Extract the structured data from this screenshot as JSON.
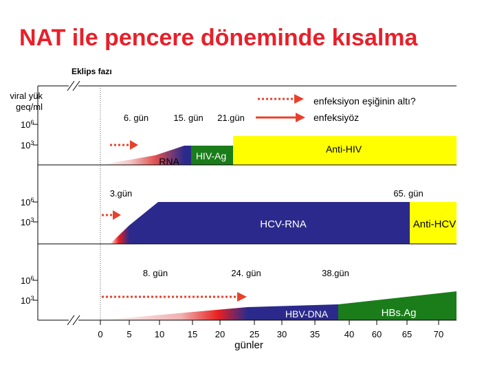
{
  "title": "NAT ile pencere döneminde kısalma",
  "eclipse_label": "Eklips fazı",
  "y_axis_label_line1": "viral yük",
  "y_axis_label_line2": "geq/ml",
  "legend": {
    "line1": "enfeksiyon eşiğinin altı?",
    "line2": "enfeksiyöz"
  },
  "panels": {
    "hiv": {
      "tick_high": "10",
      "tick_high_exp": "6",
      "tick_low": "10",
      "tick_low_exp": "3",
      "day_a": "6. gün",
      "day_b": "15. gün",
      "day_c": "21.gün",
      "label_rna": "RNA",
      "label_ag": "HIV-Ag",
      "label_ab": "Anti-HIV"
    },
    "hcv": {
      "tick_high": "10",
      "tick_high_exp": "6",
      "tick_low": "10",
      "tick_low_exp": "3",
      "day_a": "3.gün",
      "day_b": "65. gün",
      "label_rna": "HCV-RNA",
      "label_ab": "Anti-HCV"
    },
    "hbv": {
      "tick_high": "10",
      "tick_high_exp": "6",
      "tick_low": "10",
      "tick_low_exp": "3",
      "day_a": "8. gün",
      "day_b": "24. gün",
      "day_c": "38.gün",
      "label_dna": "HBV-DNA",
      "label_ag": "HBs.Ag"
    }
  },
  "x_axis": {
    "ticks": [
      "0",
      "5",
      "10",
      "15",
      "20",
      "25",
      "30",
      "35",
      "40",
      "60",
      "65",
      "70"
    ],
    "label": "günler"
  },
  "colors": {
    "title": "#e8202a",
    "arrow": "#e8402a",
    "rna_blue": "#2b2a8c",
    "antigen_green": "#1a7d1a",
    "antibody_yellow": "#ffff00"
  }
}
